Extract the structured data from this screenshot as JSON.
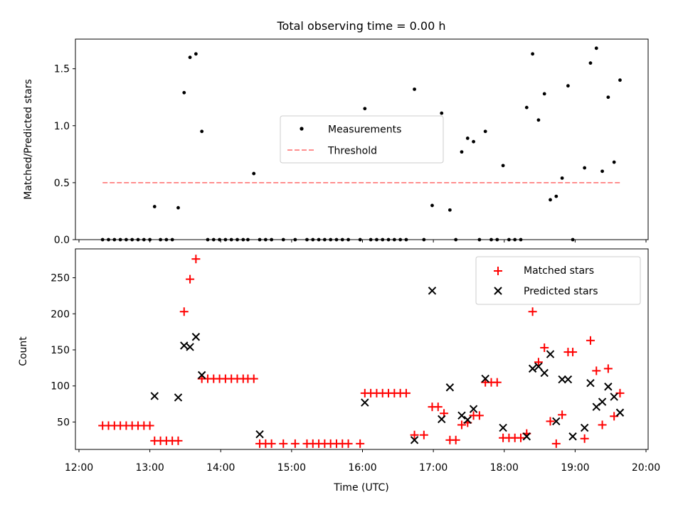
{
  "chart_data": [
    {
      "type": "scatter",
      "title": "Total observing time = 0.00 h",
      "xlabel": "",
      "ylabel": "Matched/Predicted stars",
      "xlim": [
        "12:00",
        "20:00"
      ],
      "ylim": [
        0,
        1.76
      ],
      "yticks": [
        0.0,
        0.5,
        1.0,
        1.5
      ],
      "ytick_labels": [
        "0.0",
        "0.5",
        "1.0",
        "1.5"
      ],
      "legend_loc": "center",
      "colors": {
        "measurements": "#000000",
        "threshold": "#ff7f7f"
      },
      "series": [
        {
          "name": "Measurements",
          "marker": "dot",
          "x": [
            "12:20",
            "12:25",
            "12:30",
            "12:35",
            "12:40",
            "12:45",
            "12:50",
            "12:55",
            "13:00",
            "13:04",
            "13:09",
            "13:14",
            "13:19",
            "13:24",
            "13:29",
            "13:34",
            "13:39",
            "13:44",
            "13:49",
            "13:54",
            "13:59",
            "14:04",
            "14:09",
            "14:14",
            "14:19",
            "14:23",
            "14:28",
            "14:33",
            "14:38",
            "14:43",
            "14:53",
            "15:03",
            "15:13",
            "15:18",
            "15:23",
            "15:28",
            "15:33",
            "15:38",
            "15:43",
            "15:48",
            "15:58",
            "16:02",
            "16:07",
            "16:12",
            "16:17",
            "16:22",
            "16:27",
            "16:32",
            "16:37",
            "16:44",
            "16:52",
            "16:59",
            "17:07",
            "17:14",
            "17:19",
            "17:24",
            "17:29",
            "17:34",
            "17:39",
            "17:44",
            "17:49",
            "17:54",
            "17:59",
            "18:04",
            "18:09",
            "18:14",
            "18:19",
            "18:24",
            "18:29",
            "18:34",
            "18:39",
            "18:44",
            "18:49",
            "18:54",
            "18:58",
            "19:08",
            "19:13",
            "19:18",
            "19:23",
            "19:28",
            "19:33",
            "19:38"
          ],
          "y": [
            0,
            0,
            0,
            0,
            0,
            0,
            0,
            0,
            0,
            0.29,
            0,
            0,
            0,
            0.28,
            1.29,
            1.6,
            1.63,
            0.95,
            0,
            0,
            0,
            0,
            0,
            0,
            0,
            0,
            0.58,
            0,
            0,
            0,
            0,
            0,
            0,
            0,
            0,
            0,
            0,
            0,
            0,
            0,
            0,
            1.15,
            0,
            0,
            0,
            0,
            0,
            0,
            0,
            1.32,
            0,
            0.3,
            1.11,
            0.26,
            0,
            0.77,
            0.89,
            0.86,
            0,
            0.95,
            0,
            0,
            0.65,
            0,
            0,
            0,
            1.16,
            1.63,
            1.05,
            1.28,
            0.35,
            0.38,
            0.54,
            1.35,
            0,
            0.63,
            1.55,
            1.68,
            0.6,
            1.25,
            0.68,
            1.4
          ]
        },
        {
          "name": "Threshold",
          "style": "dashed",
          "x": [
            "12:20",
            "19:38"
          ],
          "y": [
            0.5,
            0.5
          ]
        }
      ]
    },
    {
      "type": "scatter",
      "title": "",
      "xlabel": "Time (UTC)",
      "ylabel": "Count",
      "xlim": [
        "12:00",
        "20:00"
      ],
      "xticks": [
        "12:00",
        "13:00",
        "14:00",
        "15:00",
        "16:00",
        "17:00",
        "18:00",
        "19:00",
        "20:00"
      ],
      "ylim": [
        12,
        290
      ],
      "yticks": [
        50,
        100,
        150,
        200,
        250
      ],
      "ytick_labels": [
        "50",
        "100",
        "150",
        "200",
        "250"
      ],
      "legend_loc": "upper right",
      "colors": {
        "matched": "#ff0000",
        "predicted": "#000000"
      },
      "series": [
        {
          "name": "Matched stars",
          "marker": "plus",
          "x": [
            "12:20",
            "12:25",
            "12:30",
            "12:35",
            "12:40",
            "12:45",
            "12:50",
            "12:55",
            "13:00",
            "13:04",
            "13:09",
            "13:14",
            "13:19",
            "13:24",
            "13:29",
            "13:34",
            "13:39",
            "13:44",
            "13:49",
            "13:54",
            "13:59",
            "14:04",
            "14:09",
            "14:14",
            "14:19",
            "14:23",
            "14:28",
            "14:33",
            "14:38",
            "14:43",
            "14:53",
            "15:03",
            "15:13",
            "15:18",
            "15:23",
            "15:28",
            "15:33",
            "15:38",
            "15:43",
            "15:48",
            "15:58",
            "16:02",
            "16:07",
            "16:12",
            "16:17",
            "16:22",
            "16:27",
            "16:32",
            "16:37",
            "16:44",
            "16:52",
            "16:59",
            "17:04",
            "17:09",
            "17:14",
            "17:19",
            "17:24",
            "17:29",
            "17:34",
            "17:39",
            "17:44",
            "17:49",
            "17:54",
            "17:59",
            "18:04",
            "18:09",
            "18:14",
            "18:19",
            "18:24",
            "18:29",
            "18:34",
            "18:39",
            "18:44",
            "18:49",
            "18:54",
            "18:58",
            "19:08",
            "19:13",
            "19:18",
            "19:23",
            "19:28",
            "19:33",
            "19:38"
          ],
          "y": [
            45,
            45,
            45,
            45,
            45,
            45,
            45,
            45,
            45,
            24,
            24,
            24,
            24,
            24,
            203,
            248,
            276,
            110,
            110,
            110,
            110,
            110,
            110,
            110,
            110,
            110,
            110,
            20,
            20,
            20,
            20,
            20,
            20,
            20,
            20,
            20,
            20,
            20,
            20,
            20,
            20,
            90,
            90,
            90,
            90,
            90,
            90,
            90,
            90,
            32,
            32,
            71,
            71,
            62,
            25,
            25,
            46,
            49,
            59,
            59,
            105,
            105,
            105,
            28,
            28,
            28,
            28,
            34,
            203,
            133,
            153,
            51,
            20,
            60,
            147,
            147,
            27,
            163,
            121,
            46,
            124,
            58,
            90
          ]
        },
        {
          "name": "Predicted stars",
          "marker": "x",
          "x": [
            "13:04",
            "13:24",
            "13:29",
            "13:34",
            "13:39",
            "13:44",
            "14:33",
            "16:02",
            "16:44",
            "16:59",
            "17:07",
            "17:14",
            "17:24",
            "17:29",
            "17:34",
            "17:44",
            "17:59",
            "18:19",
            "18:24",
            "18:29",
            "18:34",
            "18:39",
            "18:44",
            "18:49",
            "18:54",
            "18:58",
            "19:08",
            "19:13",
            "19:18",
            "19:23",
            "19:28",
            "19:33",
            "19:38"
          ],
          "y": [
            86,
            84,
            156,
            154,
            168,
            115,
            33,
            77,
            25,
            232,
            54,
            98,
            59,
            53,
            68,
            110,
            42,
            30,
            124,
            127,
            118,
            144,
            51,
            109,
            109,
            30,
            42,
            104,
            71,
            78,
            99,
            85,
            63
          ]
        }
      ]
    }
  ]
}
